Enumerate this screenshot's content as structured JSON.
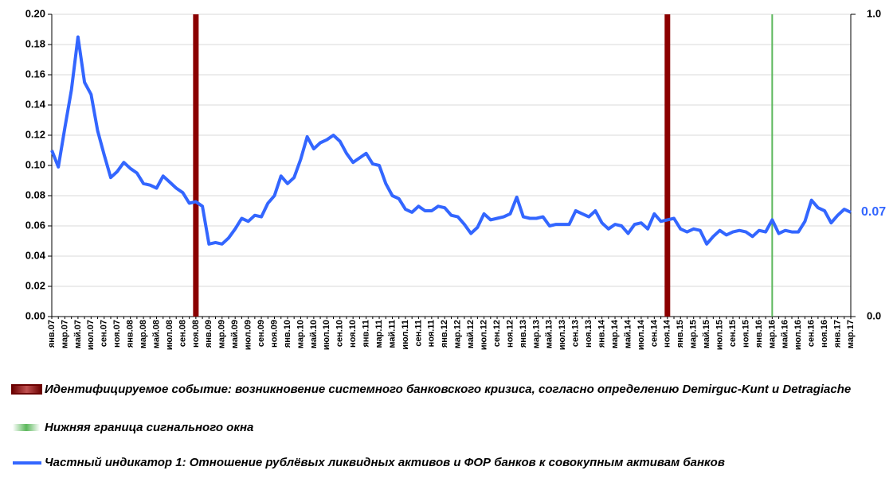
{
  "chart_data": {
    "type": "line",
    "categories": [
      "янв.07",
      null,
      "мар.07",
      null,
      "май.07",
      null,
      "июл.07",
      null,
      "сен.07",
      null,
      "ноя.07",
      null,
      "янв.08",
      null,
      "мар.08",
      null,
      "май.08",
      null,
      "июл.08",
      null,
      "сен.08",
      null,
      "ноя.08",
      null,
      "янв.09",
      null,
      "мар.09",
      null,
      "май.09",
      null,
      "июл.09",
      null,
      "сен.09",
      null,
      "ноя.09",
      null,
      "янв.10",
      null,
      "мар.10",
      null,
      "май.10",
      null,
      "июл.10",
      null,
      "сен.10",
      null,
      "ноя.10",
      null,
      "янв.11",
      null,
      "мар.11",
      null,
      "май.11",
      null,
      "июл.11",
      null,
      "сен.11",
      null,
      "ноя.11",
      null,
      "янв.12",
      null,
      "мар.12",
      null,
      "май.12",
      null,
      "июл.12",
      null,
      "сен.12",
      null,
      "ноя.12",
      null,
      "янв.13",
      null,
      "мар.13",
      null,
      "май.13",
      null,
      "июл.13",
      null,
      "сен.13",
      null,
      "ноя.13",
      null,
      "янв.14",
      null,
      "мар.14",
      null,
      "май.14",
      null,
      "июл.14",
      null,
      "сен.14",
      null,
      "ноя.14",
      null,
      "янв.15",
      null,
      "мар.15",
      null,
      "май.15",
      null,
      "июл.15",
      null,
      "сен.15",
      null,
      "ноя.15",
      null,
      "янв.16",
      null,
      "мар.16",
      null,
      "май.16",
      null,
      "июл.16",
      null,
      "сен.16",
      null,
      "ноя.16",
      null,
      "янв.17",
      null,
      "мар.17"
    ],
    "ylim": [
      0,
      0.2
    ],
    "yticks": [
      {
        "value": 0,
        "label": "0.00"
      },
      {
        "value": 0.02,
        "label": "0.02"
      },
      {
        "value": 0.04,
        "label": "0.04"
      },
      {
        "value": 0.06,
        "label": "0.06"
      },
      {
        "value": 0.08,
        "label": "0.08"
      },
      {
        "value": 0.1,
        "label": "0.10"
      },
      {
        "value": 0.12,
        "label": "0.12"
      },
      {
        "value": 0.14,
        "label": "0.14"
      },
      {
        "value": 0.16,
        "label": "0.16"
      },
      {
        "value": 0.18,
        "label": "0.18"
      },
      {
        "value": 0.2,
        "label": "0.20"
      }
    ],
    "y2lim": [
      0,
      1
    ],
    "y2ticks": [
      {
        "value": 0,
        "label": "0.0"
      },
      {
        "value": 1,
        "label": "1.0"
      }
    ],
    "series": [
      {
        "name": "Идентифицируемое событие: возникновение системного банковского кризиса, согласно определению Demirguc-Kunt и Detragiache",
        "type": "bar",
        "axis": "y2",
        "color": "#8b0000",
        "values": [
          null,
          null,
          null,
          null,
          null,
          null,
          null,
          null,
          null,
          null,
          null,
          null,
          null,
          null,
          null,
          null,
          null,
          null,
          null,
          null,
          null,
          null,
          1,
          null,
          null,
          null,
          null,
          null,
          null,
          null,
          null,
          null,
          null,
          null,
          null,
          null,
          null,
          null,
          null,
          null,
          null,
          null,
          null,
          null,
          null,
          null,
          null,
          null,
          null,
          null,
          null,
          null,
          null,
          null,
          null,
          null,
          null,
          null,
          null,
          null,
          null,
          null,
          null,
          null,
          null,
          null,
          null,
          null,
          null,
          null,
          null,
          null,
          null,
          null,
          null,
          null,
          null,
          null,
          null,
          null,
          null,
          null,
          null,
          null,
          null,
          null,
          null,
          null,
          null,
          null,
          null,
          null,
          null,
          null,
          1,
          null,
          null,
          null,
          null,
          null,
          null,
          null,
          null,
          null,
          null,
          null,
          null,
          null,
          null,
          null,
          null,
          null,
          null,
          null,
          null,
          null,
          null,
          null,
          null,
          null,
          null,
          null,
          null
        ]
      },
      {
        "name": "Нижняя граница сигнального окна",
        "type": "bar",
        "axis": "y2",
        "color": "#5cb85c",
        "values": [
          null,
          null,
          null,
          null,
          null,
          null,
          null,
          null,
          null,
          null,
          null,
          null,
          null,
          null,
          null,
          null,
          null,
          null,
          null,
          null,
          null,
          null,
          null,
          null,
          null,
          null,
          null,
          null,
          null,
          null,
          null,
          null,
          null,
          null,
          null,
          null,
          null,
          null,
          null,
          null,
          null,
          null,
          null,
          null,
          null,
          null,
          null,
          null,
          null,
          null,
          null,
          null,
          null,
          null,
          null,
          null,
          null,
          null,
          null,
          null,
          null,
          null,
          null,
          null,
          null,
          null,
          null,
          null,
          null,
          null,
          null,
          null,
          null,
          null,
          null,
          null,
          null,
          null,
          null,
          null,
          null,
          null,
          null,
          null,
          null,
          null,
          null,
          null,
          null,
          null,
          null,
          null,
          null,
          null,
          null,
          null,
          null,
          null,
          null,
          null,
          null,
          null,
          null,
          null,
          null,
          null,
          null,
          null,
          null,
          null,
          1,
          null,
          null,
          null,
          null,
          null,
          null,
          null,
          null,
          null,
          null,
          null,
          null
        ]
      },
      {
        "name": "Частный индикатор 1: Отношение рублёвых ликвидных активов и ФОР банков к совокупным активам банков",
        "type": "line",
        "color": "#3366ff",
        "values": [
          0.11,
          0.099,
          0.125,
          0.15,
          0.185,
          0.155,
          0.147,
          0.123,
          0.107,
          0.092,
          0.096,
          0.102,
          0.098,
          0.095,
          0.088,
          0.087,
          0.085,
          0.093,
          0.089,
          0.085,
          0.082,
          0.075,
          0.076,
          0.073,
          0.048,
          0.049,
          0.048,
          0.052,
          0.058,
          0.065,
          0.063,
          0.067,
          0.066,
          0.075,
          0.08,
          0.093,
          0.088,
          0.092,
          0.104,
          0.119,
          0.111,
          0.115,
          0.117,
          0.12,
          0.116,
          0.108,
          0.102,
          0.105,
          0.108,
          0.101,
          0.1,
          0.088,
          0.08,
          0.078,
          0.071,
          0.069,
          0.073,
          0.07,
          0.07,
          0.073,
          0.072,
          0.067,
          0.066,
          0.061,
          0.055,
          0.059,
          0.068,
          0.064,
          0.065,
          0.066,
          0.068,
          0.079,
          0.066,
          0.065,
          0.065,
          0.066,
          0.06,
          0.061,
          0.061,
          0.061,
          0.07,
          0.068,
          0.066,
          0.07,
          0.062,
          0.058,
          0.061,
          0.06,
          0.055,
          0.061,
          0.062,
          0.058,
          0.068,
          0.063,
          0.064,
          0.065,
          0.058,
          0.056,
          0.058,
          0.057,
          0.048,
          0.053,
          0.057,
          0.054,
          0.056,
          0.057,
          0.056,
          0.053,
          0.057,
          0.056,
          0.064,
          0.055,
          0.057,
          0.056,
          0.056,
          0.063,
          0.077,
          0.072,
          0.07,
          0.062,
          0.067,
          0.071,
          0.069
        ],
        "value_labels": [
          null,
          null,
          null,
          null,
          null,
          null,
          null,
          null,
          null,
          null,
          null,
          null,
          null,
          null,
          null,
          null,
          null,
          null,
          null,
          null,
          null,
          null,
          null,
          null,
          null,
          null,
          null,
          null,
          null,
          null,
          null,
          null,
          null,
          null,
          null,
          null,
          null,
          null,
          null,
          null,
          null,
          null,
          null,
          null,
          null,
          null,
          null,
          null,
          null,
          null,
          null,
          null,
          null,
          null,
          null,
          null,
          null,
          null,
          null,
          null,
          null,
          null,
          null,
          null,
          null,
          null,
          null,
          null,
          null,
          null,
          null,
          null,
          null,
          null,
          null,
          null,
          null,
          null,
          null,
          null,
          null,
          null,
          null,
          null,
          null,
          null,
          null,
          null,
          null,
          null,
          null,
          null,
          null,
          null,
          null,
          null,
          null,
          null,
          null,
          null,
          null,
          null,
          null,
          null,
          null,
          null,
          null,
          null,
          null,
          null,
          null,
          null,
          null,
          null,
          null,
          null,
          null,
          null,
          null,
          null,
          null,
          null,
          "0.07"
        ]
      }
    ],
    "grid": true
  }
}
